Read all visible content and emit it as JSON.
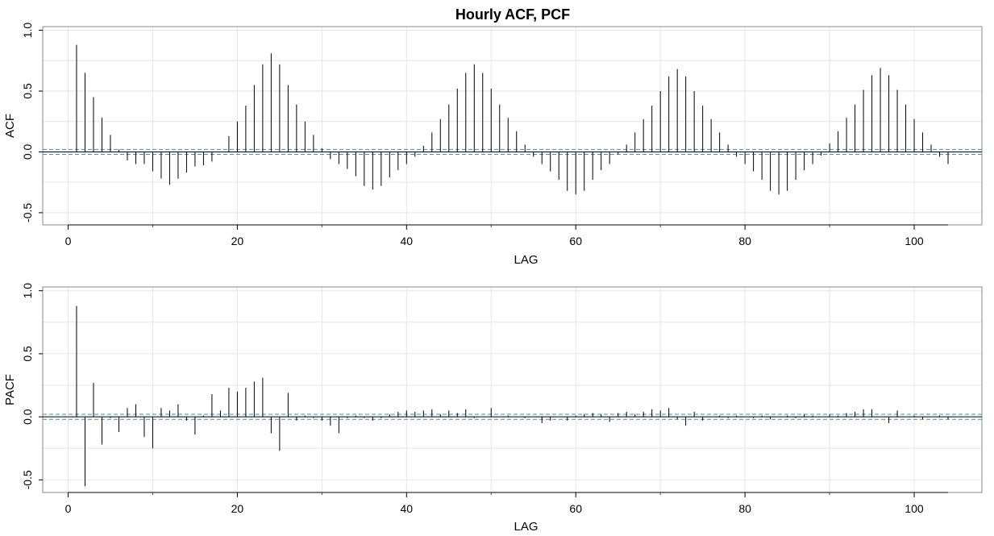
{
  "title": "Hourly ACF, PCF",
  "chart_data": [
    {
      "type": "bar",
      "name": "acf-panel",
      "ylabel": "ACF",
      "xlabel": "LAG",
      "xlim": [
        -3,
        108
      ],
      "ylim": [
        -0.6,
        1.03
      ],
      "xticks": [
        0,
        20,
        40,
        60,
        80,
        100
      ],
      "yticks": [
        -0.5,
        0.0,
        0.5,
        1.0
      ],
      "ytick_labels": [
        "-0.5",
        "0.0",
        "0.5",
        "1.0"
      ],
      "conf_bounds": [
        0.02,
        -0.02
      ],
      "grid": true,
      "lags": [
        1,
        2,
        3,
        4,
        5,
        6,
        7,
        8,
        9,
        10,
        11,
        12,
        13,
        14,
        15,
        16,
        17,
        18,
        19,
        20,
        21,
        22,
        23,
        24,
        25,
        26,
        27,
        28,
        29,
        30,
        31,
        32,
        33,
        34,
        35,
        36,
        37,
        38,
        39,
        40,
        41,
        42,
        43,
        44,
        45,
        46,
        47,
        48,
        49,
        50,
        51,
        52,
        53,
        54,
        55,
        56,
        57,
        58,
        59,
        60,
        61,
        62,
        63,
        64,
        65,
        66,
        67,
        68,
        69,
        70,
        71,
        72,
        73,
        74,
        75,
        76,
        77,
        78,
        79,
        80,
        81,
        82,
        83,
        84,
        85,
        86,
        87,
        88,
        89,
        90,
        91,
        92,
        93,
        94,
        95,
        96,
        97,
        98,
        99,
        100,
        101,
        102,
        103,
        104
      ],
      "values": [
        0.88,
        0.65,
        0.45,
        0.28,
        0.14,
        0.02,
        -0.07,
        -0.1,
        -0.1,
        -0.16,
        -0.22,
        -0.27,
        -0.22,
        -0.17,
        -0.12,
        -0.11,
        -0.08,
        0.0,
        0.13,
        0.25,
        0.38,
        0.55,
        0.72,
        0.81,
        0.72,
        0.55,
        0.39,
        0.25,
        0.14,
        0.03,
        -0.06,
        -0.1,
        -0.14,
        -0.2,
        -0.28,
        -0.31,
        -0.28,
        -0.21,
        -0.15,
        -0.1,
        -0.04,
        0.05,
        0.16,
        0.27,
        0.39,
        0.52,
        0.65,
        0.72,
        0.65,
        0.52,
        0.39,
        0.28,
        0.17,
        0.06,
        -0.04,
        -0.1,
        -0.16,
        -0.23,
        -0.32,
        -0.35,
        -0.32,
        -0.23,
        -0.15,
        -0.1,
        -0.02,
        0.06,
        0.16,
        0.27,
        0.38,
        0.5,
        0.62,
        0.68,
        0.62,
        0.5,
        0.38,
        0.27,
        0.16,
        0.06,
        -0.04,
        -0.1,
        -0.16,
        -0.23,
        -0.32,
        -0.35,
        -0.32,
        -0.23,
        -0.15,
        -0.1,
        -0.03,
        0.07,
        0.17,
        0.28,
        0.39,
        0.51,
        0.63,
        0.69,
        0.63,
        0.51,
        0.39,
        0.27,
        0.16,
        0.06,
        -0.04,
        -0.1
      ]
    },
    {
      "type": "bar",
      "name": "pacf-panel",
      "ylabel": "PACF",
      "xlabel": "LAG",
      "xlim": [
        -3,
        108
      ],
      "ylim": [
        -0.6,
        1.03
      ],
      "xticks": [
        0,
        20,
        40,
        60,
        80,
        100
      ],
      "yticks": [
        -0.5,
        0.0,
        0.5,
        1.0
      ],
      "ytick_labels": [
        "-0.5",
        "0.0",
        "0.5",
        "1.0"
      ],
      "conf_bounds": [
        0.02,
        -0.02
      ],
      "grid": true,
      "lags": [
        1,
        2,
        3,
        4,
        5,
        6,
        7,
        8,
        9,
        10,
        11,
        12,
        13,
        14,
        15,
        16,
        17,
        18,
        19,
        20,
        21,
        22,
        23,
        24,
        25,
        26,
        27,
        28,
        29,
        30,
        31,
        32,
        33,
        34,
        35,
        36,
        37,
        38,
        39,
        40,
        41,
        42,
        43,
        44,
        45,
        46,
        47,
        48,
        49,
        50,
        51,
        52,
        53,
        54,
        55,
        56,
        57,
        58,
        59,
        60,
        61,
        62,
        63,
        64,
        65,
        66,
        67,
        68,
        69,
        70,
        71,
        72,
        73,
        74,
        75,
        76,
        77,
        78,
        79,
        80,
        81,
        82,
        83,
        84,
        85,
        86,
        87,
        88,
        89,
        90,
        91,
        92,
        93,
        94,
        95,
        96,
        97,
        98,
        99,
        100,
        101,
        102,
        103,
        104
      ],
      "values": [
        0.88,
        -0.55,
        0.27,
        -0.22,
        -0.01,
        -0.12,
        0.07,
        0.1,
        -0.16,
        -0.25,
        0.07,
        0.05,
        0.1,
        -0.03,
        -0.14,
        0.01,
        0.18,
        0.05,
        0.23,
        0.2,
        0.23,
        0.28,
        0.31,
        -0.13,
        -0.27,
        0.19,
        -0.03,
        0.01,
        -0.01,
        -0.03,
        -0.07,
        -0.13,
        -0.01,
        0.01,
        -0.01,
        -0.03,
        -0.01,
        0.02,
        0.04,
        0.05,
        0.04,
        0.05,
        0.06,
        0.02,
        0.05,
        0.03,
        0.06,
        -0.01,
        0.0,
        0.07,
        0.0,
        0.01,
        0.0,
        -0.01,
        0.0,
        -0.05,
        -0.03,
        0.0,
        -0.03,
        0.01,
        0.02,
        0.03,
        0.02,
        -0.04,
        0.03,
        0.04,
        0.02,
        0.04,
        0.06,
        0.05,
        0.07,
        -0.02,
        -0.07,
        0.04,
        -0.03,
        0.0,
        0.01,
        -0.01,
        0.01,
        0.0,
        -0.01,
        0.01,
        -0.02,
        0.0,
        0.01,
        -0.01,
        0.02,
        0.01,
        0.0,
        0.02,
        0.01,
        0.03,
        0.04,
        0.06,
        0.06,
        0.0,
        -0.05,
        0.05,
        0.0,
        0.01,
        -0.02,
        0.0,
        0.01,
        -0.02
      ]
    }
  ]
}
